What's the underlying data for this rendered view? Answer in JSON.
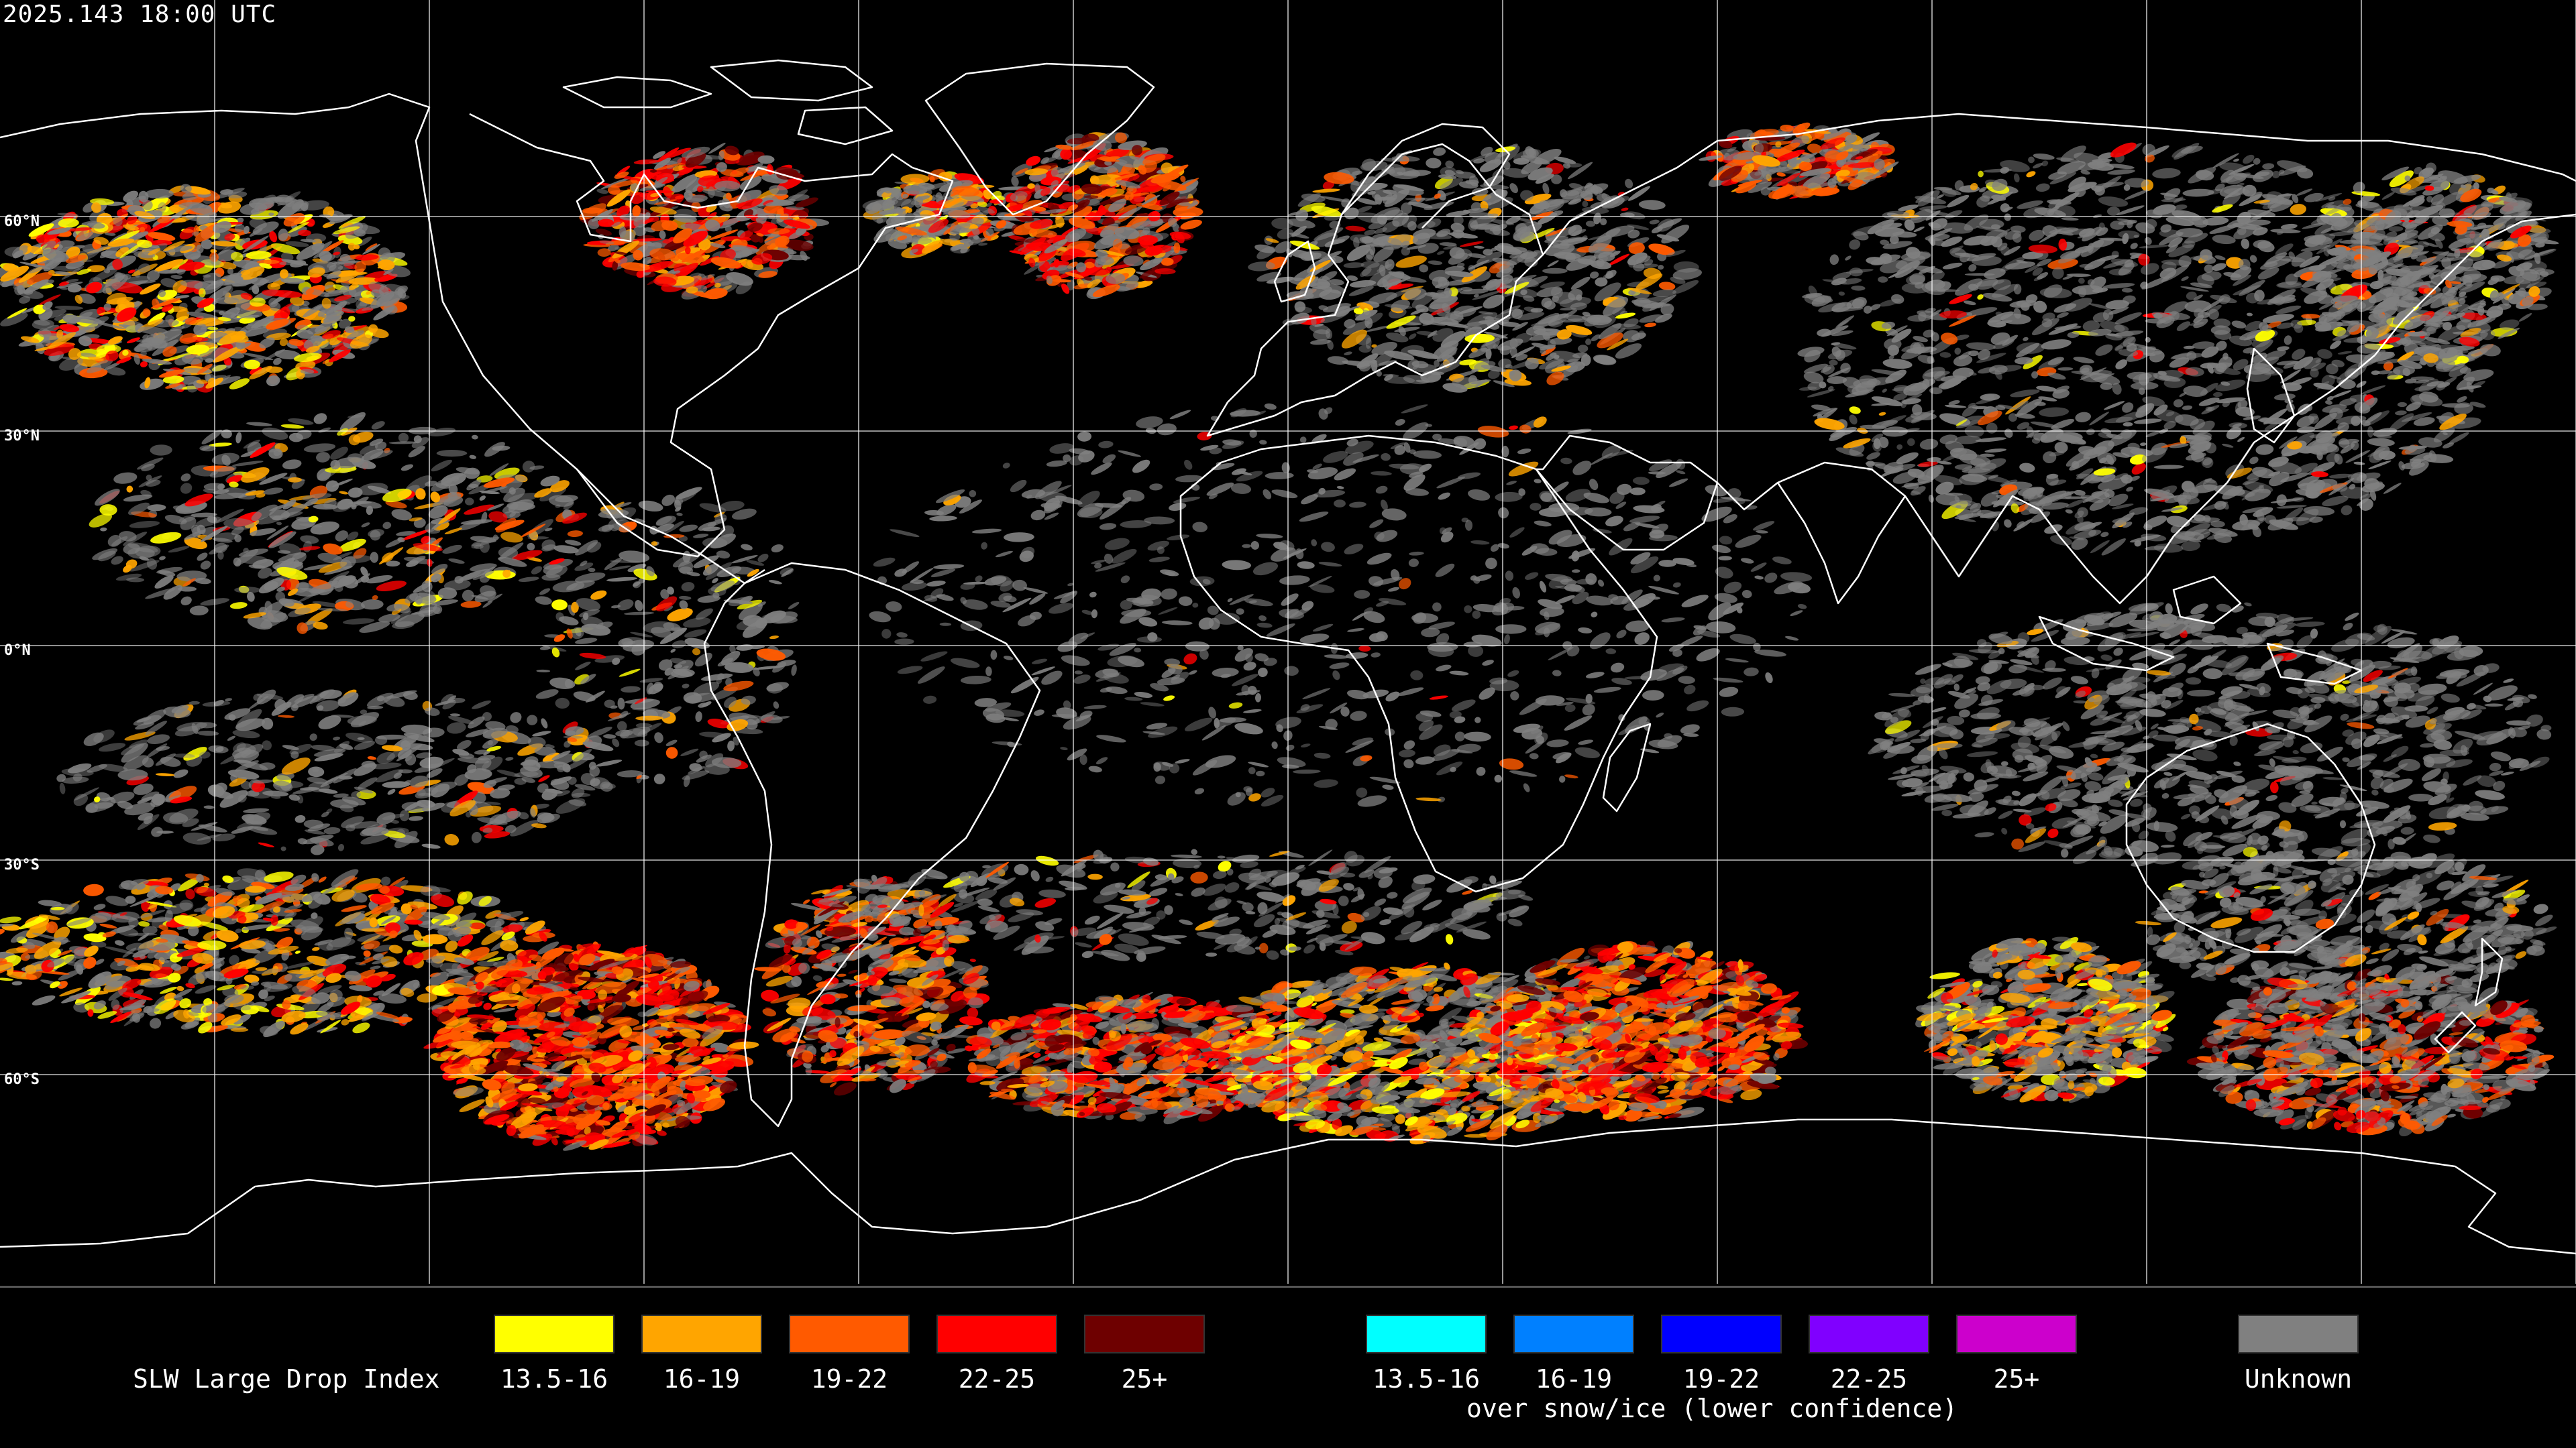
{
  "timestamp": "2025.143 18:00 UTC",
  "lat_labels": [
    "60°N",
    "30°N",
    "0°N",
    "30°S",
    "60°S"
  ],
  "legend": {
    "title": "SLW Large Drop Index",
    "groups": [
      {
        "name": "liquid",
        "items": [
          {
            "label": "13.5-16",
            "color": "#ffff00"
          },
          {
            "label": "16-19",
            "color": "#ffa500"
          },
          {
            "label": "19-22",
            "color": "#ff5a00"
          },
          {
            "label": "22-25",
            "color": "#ff0000"
          },
          {
            "label": "25+",
            "color": "#6e0000"
          }
        ]
      },
      {
        "name": "snow-ice",
        "caption": "over snow/ice (lower confidence)",
        "items": [
          {
            "label": "13.5-16",
            "color": "#00ffff"
          },
          {
            "label": "16-19",
            "color": "#0080ff"
          },
          {
            "label": "19-22",
            "color": "#0000ff"
          },
          {
            "label": "22-25",
            "color": "#8000ff"
          },
          {
            "label": "25+",
            "color": "#cc00cc"
          }
        ]
      },
      {
        "name": "unknown",
        "items": [
          {
            "label": "Unknown",
            "color": "#808080"
          }
        ]
      }
    ]
  }
}
